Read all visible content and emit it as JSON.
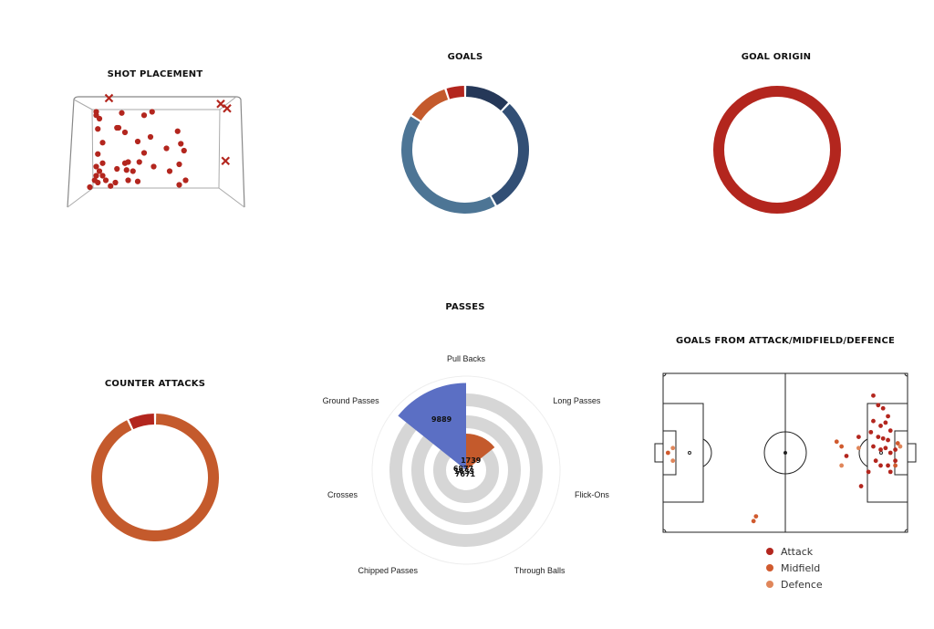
{
  "chart_data": [
    {
      "id": "shot-placement",
      "type": "scatter",
      "title": "SHOT PLACEMENT",
      "series": [
        {
          "name": "",
          "marker": "dot",
          "color": "#b3261e",
          "points": [
            [
              0.06,
              0.1
            ],
            [
              0.06,
              0.13
            ],
            [
              0.08,
              0.16
            ],
            [
              0.22,
              0.11
            ],
            [
              0.36,
              0.13
            ],
            [
              0.41,
              0.1
            ],
            [
              0.07,
              0.25
            ],
            [
              0.19,
              0.24
            ],
            [
              0.2,
              0.24
            ],
            [
              0.24,
              0.28
            ],
            [
              0.57,
              0.27
            ],
            [
              0.4,
              0.32
            ],
            [
              0.32,
              0.36
            ],
            [
              0.1,
              0.37
            ],
            [
              0.36,
              0.46
            ],
            [
              0.5,
              0.42
            ],
            [
              0.59,
              0.38
            ],
            [
              0.61,
              0.44
            ],
            [
              0.07,
              0.47
            ],
            [
              0.1,
              0.55
            ],
            [
              0.06,
              0.58
            ],
            [
              0.08,
              0.62
            ],
            [
              0.24,
              0.55
            ],
            [
              0.26,
              0.54
            ],
            [
              0.33,
              0.54
            ],
            [
              0.42,
              0.58
            ],
            [
              0.58,
              0.56
            ],
            [
              0.52,
              0.62
            ],
            [
              0.19,
              0.6
            ],
            [
              0.25,
              0.61
            ],
            [
              0.29,
              0.62
            ],
            [
              0.06,
              0.66
            ],
            [
              0.1,
              0.66
            ],
            [
              0.05,
              0.7
            ],
            [
              0.07,
              0.72
            ],
            [
              0.12,
              0.7
            ],
            [
              0.18,
              0.72
            ],
            [
              0.26,
              0.7
            ],
            [
              0.32,
              0.71
            ],
            [
              0.62,
              0.7
            ],
            [
              0.58,
              0.74
            ],
            [
              0.02,
              0.76
            ],
            [
              0.15,
              0.75
            ]
          ]
        },
        {
          "name": "",
          "marker": "x",
          "color": "#b3261e",
          "points": [
            [
              0.14,
              -0.02
            ],
            [
              0.84,
              0.03
            ],
            [
              0.88,
              0.07
            ],
            [
              0.87,
              0.53
            ]
          ]
        }
      ]
    },
    {
      "id": "goals",
      "type": "pie",
      "title": "GOALS",
      "slices": [
        {
          "value": 12,
          "color": "#253858"
        },
        {
          "value": 30,
          "color": "#324f75"
        },
        {
          "value": 42,
          "color": "#4d7595"
        },
        {
          "value": 11,
          "color": "#c45a2c"
        },
        {
          "value": 5,
          "color": "#b3261e"
        }
      ]
    },
    {
      "id": "goal-origin",
      "type": "pie",
      "title": "GOAL ORIGIN",
      "slices": [
        {
          "value": 100,
          "color": "#b3261e"
        }
      ]
    },
    {
      "id": "passes",
      "type": "pie",
      "title": "PASSES",
      "categories": [
        "Pull Backs",
        "Long Passes",
        "Flick-Ons",
        "Through Balls",
        "Chipped Passes",
        "Crosses",
        "Ground Passes"
      ],
      "values": [
        1739,
        0,
        0,
        0,
        0,
        0,
        9889
      ],
      "value_labels": [
        "1739",
        "",
        "",
        "",
        "",
        "",
        "9889"
      ],
      "center_labels": [
        "6877",
        "1633",
        "7671"
      ],
      "colors": [
        "#c45a2c",
        "#cccccc",
        "#cccccc",
        "#cccccc",
        "#cccccc",
        "#cccccc",
        "#5b6fc4"
      ],
      "max": 10000
    },
    {
      "id": "counter-attacks",
      "type": "pie",
      "title": "COUNTER ATTACKS",
      "slices": [
        {
          "value": 93,
          "color": "#c45a2c"
        },
        {
          "value": 7,
          "color": "#b3261e"
        }
      ]
    },
    {
      "id": "goals-from-zone",
      "type": "scatter",
      "title": "GOALS FROM ATTACK/MIDFIELD/DEFENCE",
      "legend": [
        "Attack",
        "Midfield",
        "Defence"
      ],
      "series": [
        {
          "name": "Attack",
          "color": "#b3261e",
          "points": [
            [
              0.86,
              0.14
            ],
            [
              0.88,
              0.2
            ],
            [
              0.9,
              0.22
            ],
            [
              0.92,
              0.27
            ],
            [
              0.86,
              0.3
            ],
            [
              0.89,
              0.33
            ],
            [
              0.91,
              0.31
            ],
            [
              0.93,
              0.36
            ],
            [
              0.85,
              0.37
            ],
            [
              0.88,
              0.4
            ],
            [
              0.9,
              0.41
            ],
            [
              0.92,
              0.42
            ],
            [
              0.86,
              0.46
            ],
            [
              0.89,
              0.48
            ],
            [
              0.91,
              0.47
            ],
            [
              0.93,
              0.5
            ],
            [
              0.95,
              0.48
            ],
            [
              0.87,
              0.55
            ],
            [
              0.89,
              0.58
            ],
            [
              0.92,
              0.58
            ],
            [
              0.95,
              0.55
            ],
            [
              0.93,
              0.62
            ],
            [
              0.84,
              0.62
            ],
            [
              0.81,
              0.71
            ],
            [
              0.75,
              0.52
            ],
            [
              0.8,
              0.4
            ]
          ]
        },
        {
          "name": "Midfield",
          "color": "#d05a2e",
          "points": [
            [
              0.96,
              0.44
            ],
            [
              0.95,
              0.58
            ],
            [
              0.71,
              0.43
            ],
            [
              0.73,
              0.46
            ],
            [
              0.38,
              0.9
            ],
            [
              0.02,
              0.5
            ],
            [
              0.37,
              0.93
            ]
          ]
        },
        {
          "name": "Defence",
          "color": "#e0865a",
          "points": [
            [
              0.04,
              0.47
            ],
            [
              0.04,
              0.55
            ],
            [
              0.8,
              0.47
            ],
            [
              0.73,
              0.58
            ],
            [
              0.97,
              0.46
            ]
          ]
        }
      ]
    }
  ]
}
